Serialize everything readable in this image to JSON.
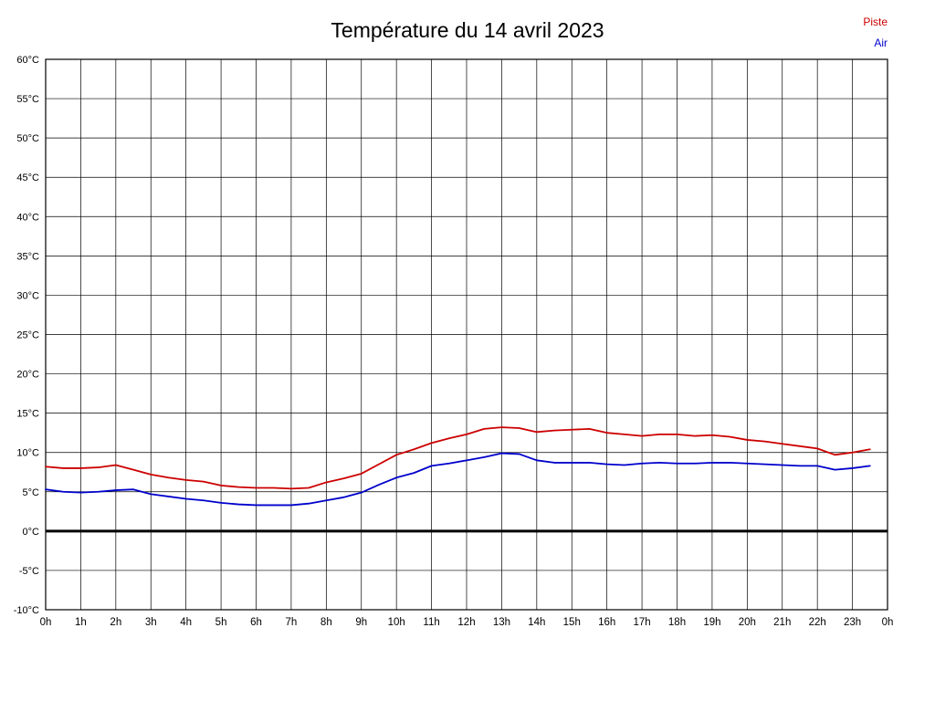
{
  "chart_data": {
    "type": "line",
    "title": "Température du 14 avril 2023",
    "xlabel": "",
    "ylabel": "",
    "xlim": [
      0,
      24
    ],
    "ylim": [
      -10,
      60
    ],
    "grid": true,
    "grid_color": "#000000",
    "zero_line": true,
    "legend_position": "top-right",
    "x": [
      0,
      0.5,
      1,
      1.5,
      2,
      2.5,
      3,
      3.5,
      4,
      4.5,
      5,
      5.5,
      6,
      6.5,
      7,
      7.5,
      8,
      8.5,
      9,
      9.5,
      10,
      10.5,
      11,
      11.5,
      12,
      12.5,
      13,
      13.5,
      14,
      14.5,
      15,
      15.5,
      16,
      16.5,
      17,
      17.5,
      18,
      18.5,
      19,
      19.5,
      20,
      20.5,
      21,
      21.5,
      22,
      22.5,
      23,
      23.5
    ],
    "series": [
      {
        "name": "Piste",
        "color": "#cc0000",
        "values": [
          8.2,
          8.0,
          8.0,
          8.1,
          8.4,
          7.8,
          7.2,
          6.8,
          6.5,
          6.3,
          5.8,
          5.6,
          5.5,
          5.5,
          5.4,
          5.5,
          6.2,
          6.7,
          7.3,
          8.5,
          9.7,
          10.4,
          11.2,
          11.8,
          12.3,
          13.0,
          13.2,
          13.1,
          12.6,
          12.8,
          12.9,
          13.0,
          12.5,
          12.3,
          12.1,
          12.3,
          12.3,
          12.1,
          12.2,
          12.0,
          11.6,
          11.4,
          11.1,
          10.8,
          10.5,
          9.7,
          10.0,
          10.4
        ]
      },
      {
        "name": "Air",
        "color": "#0000cc",
        "values": [
          5.3,
          5.0,
          4.9,
          5.0,
          5.2,
          5.3,
          4.7,
          4.4,
          4.1,
          3.9,
          3.6,
          3.4,
          3.3,
          3.3,
          3.3,
          3.5,
          3.9,
          4.3,
          4.9,
          5.9,
          6.8,
          7.4,
          8.3,
          8.6,
          9.0,
          9.4,
          9.9,
          9.8,
          9.0,
          8.7,
          8.7,
          8.7,
          8.5,
          8.4,
          8.6,
          8.7,
          8.6,
          8.6,
          8.7,
          8.7,
          8.6,
          8.5,
          8.4,
          8.3,
          8.3,
          7.8,
          8.0,
          8.3
        ]
      }
    ],
    "yticks": [
      {
        "value": 60,
        "label": "60°C"
      },
      {
        "value": 55,
        "label": "55°C"
      },
      {
        "value": 50,
        "label": "50°C"
      },
      {
        "value": 45,
        "label": "45°C"
      },
      {
        "value": 40,
        "label": "40°C"
      },
      {
        "value": 35,
        "label": "35°C"
      },
      {
        "value": 30,
        "label": "30°C"
      },
      {
        "value": 25,
        "label": "25°C"
      },
      {
        "value": 20,
        "label": "20°C"
      },
      {
        "value": 15,
        "label": "15°C"
      },
      {
        "value": 10,
        "label": "10°C"
      },
      {
        "value": 5,
        "label": "5°C"
      },
      {
        "value": 0,
        "label": "0°C"
      },
      {
        "value": -5,
        "label": "-5°C"
      },
      {
        "value": -10,
        "label": "-10°C"
      }
    ],
    "xticks": [
      {
        "value": 0,
        "label": "0h"
      },
      {
        "value": 1,
        "label": "1h"
      },
      {
        "value": 2,
        "label": "2h"
      },
      {
        "value": 3,
        "label": "3h"
      },
      {
        "value": 4,
        "label": "4h"
      },
      {
        "value": 5,
        "label": "5h"
      },
      {
        "value": 6,
        "label": "6h"
      },
      {
        "value": 7,
        "label": "7h"
      },
      {
        "value": 8,
        "label": "8h"
      },
      {
        "value": 9,
        "label": "9h"
      },
      {
        "value": 10,
        "label": "10h"
      },
      {
        "value": 11,
        "label": "11h"
      },
      {
        "value": 12,
        "label": "12h"
      },
      {
        "value": 13,
        "label": "13h"
      },
      {
        "value": 14,
        "label": "14h"
      },
      {
        "value": 15,
        "label": "15h"
      },
      {
        "value": 16,
        "label": "16h"
      },
      {
        "value": 17,
        "label": "17h"
      },
      {
        "value": 18,
        "label": "18h"
      },
      {
        "value": 19,
        "label": "19h"
      },
      {
        "value": 20,
        "label": "20h"
      },
      {
        "value": 21,
        "label": "21h"
      },
      {
        "value": 22,
        "label": "22h"
      },
      {
        "value": 23,
        "label": "23h"
      },
      {
        "value": 24,
        "label": "0h"
      }
    ]
  }
}
